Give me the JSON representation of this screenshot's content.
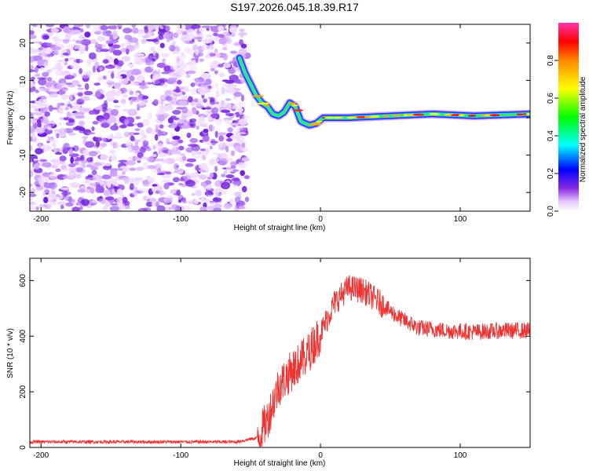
{
  "title": "S197.2026.045.18.39.R17",
  "chart_data": [
    {
      "id": "spectrogram",
      "type": "heatmap",
      "xlabel": "Height of straight line (km)",
      "ylabel": "Frequency (Hz)",
      "xlim": [
        -208,
        150
      ],
      "ylim": [
        -25,
        25
      ],
      "xticks": [
        -200,
        -100,
        0,
        100
      ],
      "yticks": [
        -20,
        -10,
        0,
        10,
        20
      ],
      "ridge": [
        {
          "x": -58,
          "y": 16
        },
        {
          "x": -54,
          "y": 12
        },
        {
          "x": -50,
          "y": 9
        },
        {
          "x": -46,
          "y": 6
        },
        {
          "x": -42,
          "y": 4
        },
        {
          "x": -38,
          "y": 3
        },
        {
          "x": -34,
          "y": 1
        },
        {
          "x": -30,
          "y": 0.5
        },
        {
          "x": -26,
          "y": 1.5
        },
        {
          "x": -22,
          "y": 4
        },
        {
          "x": -18,
          "y": 3
        },
        {
          "x": -14,
          "y": -1
        },
        {
          "x": -8,
          "y": -2
        },
        {
          "x": -3,
          "y": -1.5
        },
        {
          "x": 2,
          "y": 0
        },
        {
          "x": 20,
          "y": 0
        },
        {
          "x": 50,
          "y": 0.5
        },
        {
          "x": 80,
          "y": 1
        },
        {
          "x": 110,
          "y": 0.5
        },
        {
          "x": 150,
          "y": 1
        }
      ],
      "noise_region_x": [
        -208,
        -57
      ],
      "colorbar": {
        "label": "Normalized spectral amplitude",
        "ticks": [
          0.0,
          0.2,
          0.4,
          0.6,
          0.8
        ],
        "tick_labels": [
          "0.0",
          "0.2",
          "0.4",
          "0.6",
          "0.8"
        ],
        "range": [
          0,
          1
        ]
      }
    },
    {
      "id": "snr",
      "type": "line",
      "xlabel": "Height of straight line (km)",
      "ylabel": "SNR (10 * v/v)",
      "xlim": [
        -208,
        150
      ],
      "ylim": [
        0,
        680
      ],
      "xticks": [
        -200,
        -100,
        0,
        100
      ],
      "yticks": [
        0,
        200,
        400,
        600
      ],
      "series": [
        {
          "name": "SNR",
          "color": "#ee3333",
          "envelope": [
            {
              "x": -208,
              "y": 20
            },
            {
              "x": -60,
              "y": 20
            },
            {
              "x": -45,
              "y": 35
            },
            {
              "x": -38,
              "y": 100
            },
            {
              "x": -30,
              "y": 220
            },
            {
              "x": -20,
              "y": 280
            },
            {
              "x": -10,
              "y": 330
            },
            {
              "x": 0,
              "y": 410
            },
            {
              "x": 10,
              "y": 520
            },
            {
              "x": 20,
              "y": 575
            },
            {
              "x": 30,
              "y": 565
            },
            {
              "x": 40,
              "y": 530
            },
            {
              "x": 55,
              "y": 470
            },
            {
              "x": 70,
              "y": 430
            },
            {
              "x": 90,
              "y": 420
            },
            {
              "x": 110,
              "y": 415
            },
            {
              "x": 130,
              "y": 420
            },
            {
              "x": 150,
              "y": 420
            }
          ]
        }
      ]
    }
  ]
}
